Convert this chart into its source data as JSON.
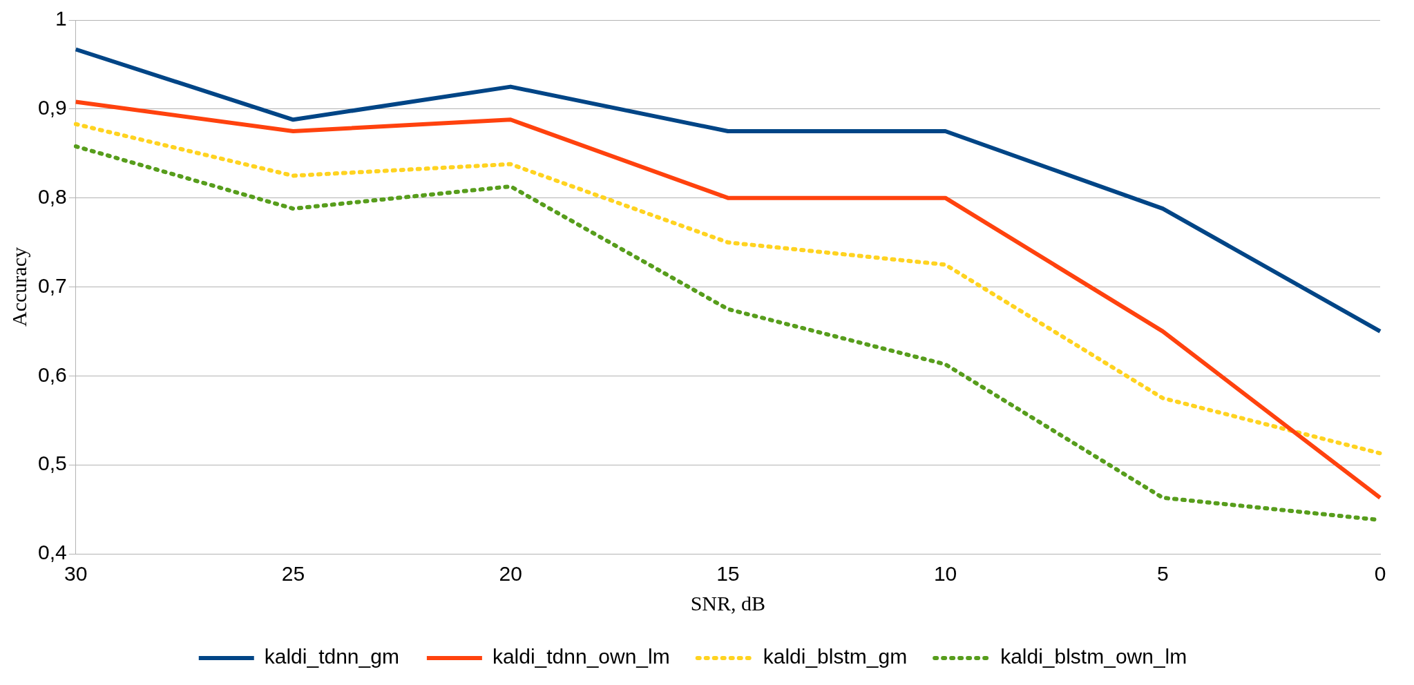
{
  "chart_data": {
    "type": "line",
    "xlabel": "SNR, dB",
    "ylabel": "Accuracy",
    "categories": [
      "30",
      "25",
      "20",
      "15",
      "10",
      "5",
      "0"
    ],
    "ylim": [
      0.4,
      1
    ],
    "yticks": [
      {
        "value": 0.4,
        "label": "0,4"
      },
      {
        "value": 0.5,
        "label": "0,5"
      },
      {
        "value": 0.6,
        "label": "0,6"
      },
      {
        "value": 0.7,
        "label": "0,7"
      },
      {
        "value": 0.8,
        "label": "0,8"
      },
      {
        "value": 0.9,
        "label": "0,9"
      },
      {
        "value": 1,
        "label": "1"
      }
    ],
    "grid": "y",
    "legend": "bottom",
    "series": [
      {
        "name": "kaldi_tdnn_gm",
        "color": "#004586",
        "line_style": "solid",
        "values": [
          0.967,
          0.888,
          0.925,
          0.875,
          0.875,
          0.788,
          0.65
        ]
      },
      {
        "name": "kaldi_tdnn_own_lm",
        "color": "#ff420e",
        "line_style": "solid",
        "values": [
          0.908,
          0.875,
          0.888,
          0.8,
          0.8,
          0.65,
          0.463
        ]
      },
      {
        "name": "kaldi_blstm_gm",
        "color": "#ffd320",
        "line_style": "dotted",
        "values": [
          0.883,
          0.825,
          0.838,
          0.75,
          0.725,
          0.575,
          0.513
        ]
      },
      {
        "name": "kaldi_blstm_own_lm",
        "color": "#579d1c",
        "line_style": "dotted",
        "values": [
          0.858,
          0.788,
          0.813,
          0.675,
          0.613,
          0.463,
          0.438
        ]
      }
    ]
  }
}
